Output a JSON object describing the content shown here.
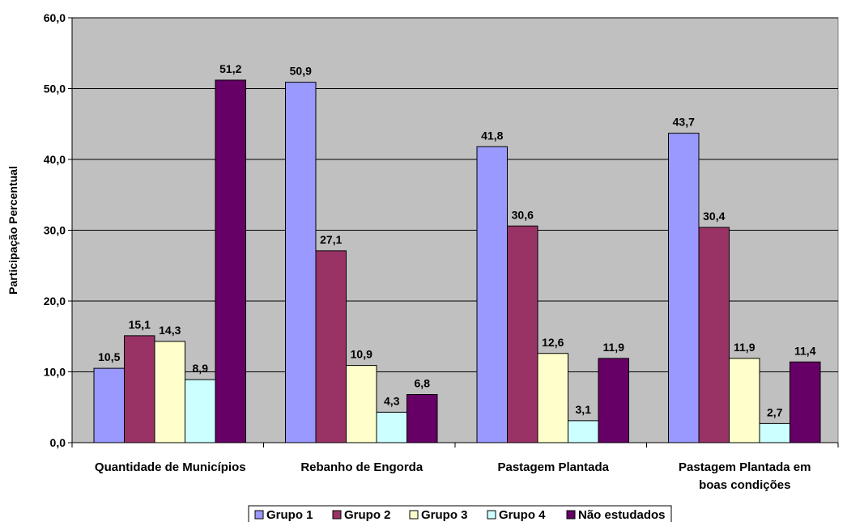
{
  "chart_data": {
    "type": "bar",
    "title": "",
    "xlabel": "",
    "ylabel": "Participação Percentual",
    "ylim": [
      0,
      60
    ],
    "yticks": [
      "0,0",
      "10,0",
      "20,0",
      "30,0",
      "40,0",
      "50,0",
      "60,0"
    ],
    "grid": true,
    "legend_position": "bottom",
    "categories": [
      [
        "Quantidade de Municípios"
      ],
      [
        "Rebanho de Engorda"
      ],
      [
        "Pastagem Plantada"
      ],
      [
        "Pastagem Plantada em",
        "boas condições"
      ]
    ],
    "series": [
      {
        "name": "Grupo 1",
        "color": "#9999FF",
        "values": [
          10.5,
          50.9,
          41.8,
          43.7
        ],
        "labels": [
          "10,5",
          "50,9",
          "41,8",
          "43,7"
        ]
      },
      {
        "name": "Grupo 2",
        "color": "#993366",
        "values": [
          15.1,
          27.1,
          30.6,
          30.4
        ],
        "labels": [
          "15,1",
          "27,1",
          "30,6",
          "30,4"
        ]
      },
      {
        "name": "Grupo 3",
        "color": "#FFFFCC",
        "values": [
          14.3,
          10.9,
          12.6,
          11.9
        ],
        "labels": [
          "14,3",
          "10,9",
          "12,6",
          "11,9"
        ]
      },
      {
        "name": "Grupo 4",
        "color": "#CCFFFF",
        "values": [
          8.9,
          4.3,
          3.1,
          2.7
        ],
        "labels": [
          "8,9",
          "4,3",
          "3,1",
          "2,7"
        ]
      },
      {
        "name": "Não estudados",
        "color": "#660066",
        "values": [
          51.2,
          6.8,
          11.9,
          11.4
        ],
        "labels": [
          "51,2",
          "6,8",
          "11,9",
          "11,4"
        ]
      }
    ],
    "plot_background": "#C0C0C0"
  }
}
